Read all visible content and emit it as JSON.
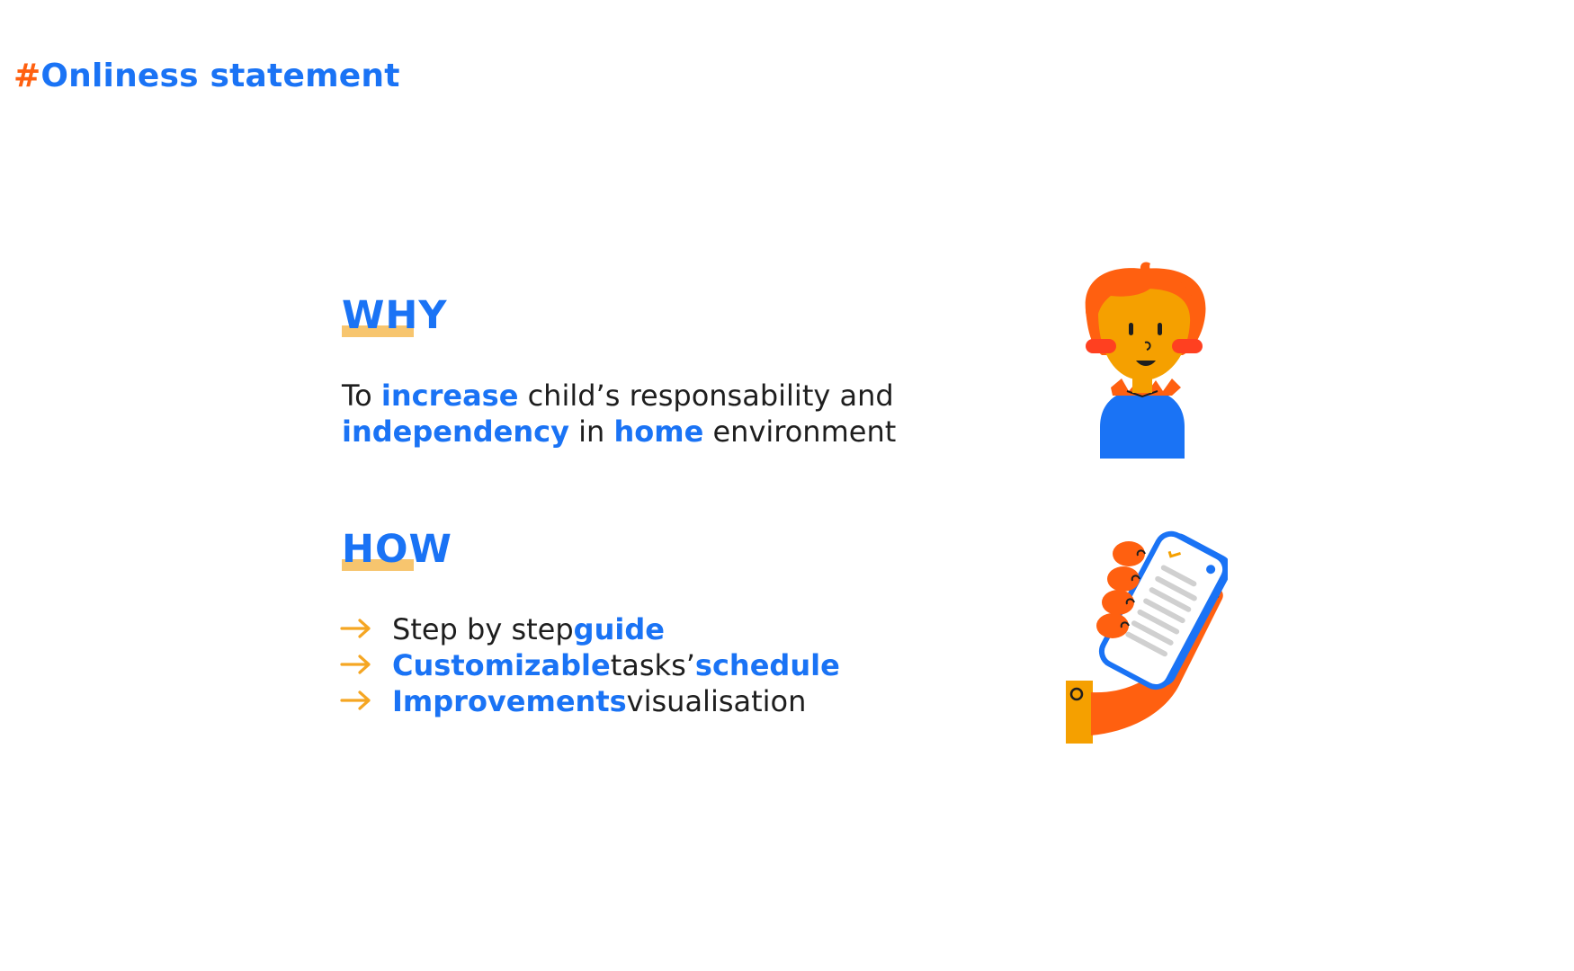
{
  "title": {
    "hash": "#",
    "text": "Onliness statement"
  },
  "why": {
    "heading": "WHY",
    "line1": [
      {
        "text": "To ",
        "emphasis": false
      },
      {
        "text": "increase",
        "emphasis": true
      },
      {
        "text": " child’s responsability and",
        "emphasis": false
      }
    ],
    "line2": [
      {
        "text": "independency",
        "emphasis": true
      },
      {
        "text": " in ",
        "emphasis": false
      },
      {
        "text": "home",
        "emphasis": true
      },
      {
        "text": " environment",
        "emphasis": false
      }
    ]
  },
  "how": {
    "heading": "HOW",
    "items": [
      [
        {
          "text": "Step by step ",
          "emphasis": false
        },
        {
          "text": "guide",
          "emphasis": true
        }
      ],
      [
        {
          "text": "Customizable",
          "emphasis": true
        },
        {
          "text": " tasks’ ",
          "emphasis": false
        },
        {
          "text": "schedule",
          "emphasis": true
        }
      ],
      [
        {
          "text": "Improvements",
          "emphasis": true
        },
        {
          "text": " visualisation",
          "emphasis": false
        }
      ]
    ]
  },
  "illustrations": {
    "child": "child-avatar-icon",
    "phone": "hand-holding-phone-icon"
  },
  "colors": {
    "accent_blue": "#1a73f5",
    "accent_orange": "#ff6010",
    "highlight_yellow": "#f7c56e",
    "arrow_orange": "#f5a623",
    "body_text": "#1e1e1e"
  }
}
